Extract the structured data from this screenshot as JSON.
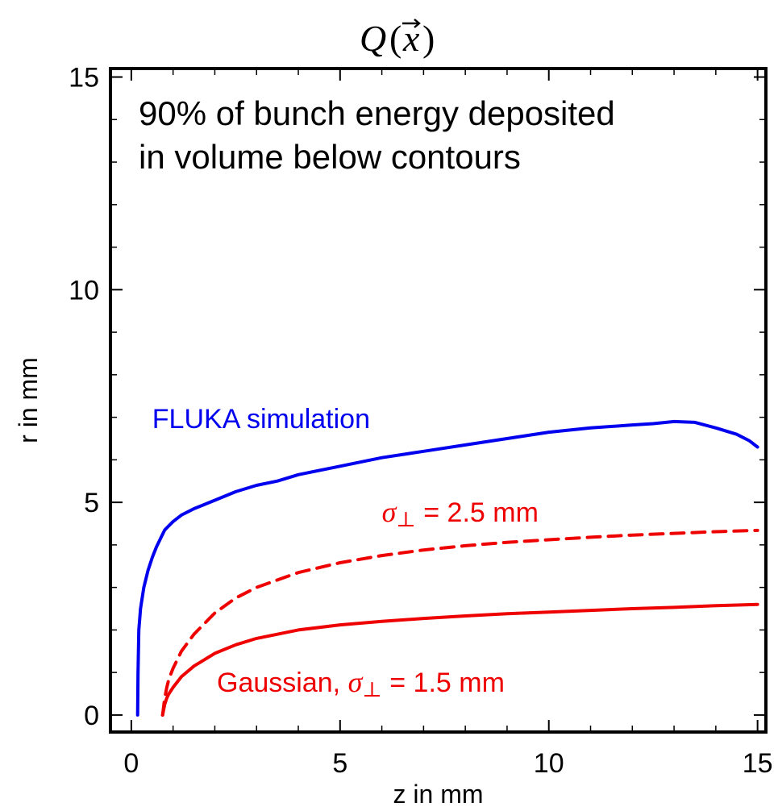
{
  "chart_data": {
    "type": "line",
    "title": "Q(x⃗)",
    "xlabel": "z in mm",
    "ylabel": "r in mm",
    "xlim": [
      -0.5,
      15.2
    ],
    "ylim": [
      -0.4,
      15.2
    ],
    "xticks": [
      0,
      5,
      10,
      15
    ],
    "yticks": [
      0,
      5,
      10,
      15
    ],
    "xtick_labels": [
      "0",
      "5",
      "10",
      "15"
    ],
    "ytick_labels": [
      "0",
      "5",
      "10",
      "15"
    ],
    "grid": false,
    "annotation": [
      "90% of bunch energy deposited",
      "in volume below contours"
    ],
    "series": [
      {
        "name": "FLUKA simulation",
        "color": "#0000ee",
        "dash": "solid",
        "x": [
          0.15,
          0.16,
          0.18,
          0.22,
          0.3,
          0.4,
          0.5,
          0.6,
          0.7,
          0.8,
          0.9,
          1.0,
          1.2,
          1.5,
          2.0,
          2.5,
          3.0,
          3.5,
          4.0,
          5.0,
          6.0,
          7.0,
          8.0,
          9.0,
          10.0,
          11.0,
          12.0,
          12.5,
          13.0,
          13.5,
          14.0,
          14.5,
          14.8,
          15.0
        ],
        "y": [
          0.0,
          1.0,
          2.0,
          2.5,
          3.0,
          3.4,
          3.7,
          3.95,
          4.15,
          4.35,
          4.45,
          4.55,
          4.7,
          4.85,
          5.05,
          5.25,
          5.4,
          5.5,
          5.65,
          5.85,
          6.05,
          6.2,
          6.35,
          6.5,
          6.65,
          6.75,
          6.82,
          6.85,
          6.9,
          6.88,
          6.75,
          6.6,
          6.45,
          6.3
        ]
      },
      {
        "name": "σ⊥ = 2.5 mm",
        "color": "#ee0000",
        "dash": "dashed",
        "x": [
          0.75,
          0.8,
          0.85,
          0.9,
          1.0,
          1.2,
          1.5,
          2.0,
          2.5,
          3.0,
          4.0,
          5.0,
          6.0,
          7.0,
          8.0,
          9.0,
          10.0,
          11.0,
          12.0,
          13.0,
          14.0,
          15.0
        ],
        "y": [
          0.0,
          0.4,
          0.65,
          0.85,
          1.1,
          1.5,
          1.9,
          2.4,
          2.75,
          3.0,
          3.35,
          3.58,
          3.75,
          3.88,
          3.98,
          4.06,
          4.12,
          4.18,
          4.23,
          4.27,
          4.31,
          4.34
        ]
      },
      {
        "name": "Gaussian, σ⊥ = 1.5 mm",
        "color": "#ee0000",
        "dash": "solid",
        "x": [
          0.75,
          0.8,
          0.85,
          0.9,
          1.0,
          1.2,
          1.5,
          2.0,
          2.5,
          3.0,
          4.0,
          5.0,
          6.0,
          7.0,
          8.0,
          9.0,
          10.0,
          11.0,
          12.0,
          13.0,
          14.0,
          15.0
        ],
        "y": [
          0.0,
          0.25,
          0.4,
          0.5,
          0.65,
          0.9,
          1.15,
          1.45,
          1.65,
          1.8,
          2.0,
          2.12,
          2.2,
          2.27,
          2.33,
          2.38,
          2.42,
          2.46,
          2.5,
          2.53,
          2.57,
          2.6
        ]
      }
    ],
    "labels": [
      {
        "sym": "",
        "text": "FLUKA simulation",
        "x": 0.5,
        "y": 6.75,
        "color": "#0000ee"
      },
      {
        "sym": "σ",
        "sub": "⊥",
        "text": " = 2.5 mm",
        "x": 6.0,
        "y": 4.55,
        "color": "#ee0000"
      },
      {
        "sym": "σ",
        "sub": "⊥",
        "prefix": "Gaussian, ",
        "text": " = 1.5 mm",
        "x": 2.05,
        "y": 0.55,
        "color": "#ee0000"
      }
    ]
  }
}
